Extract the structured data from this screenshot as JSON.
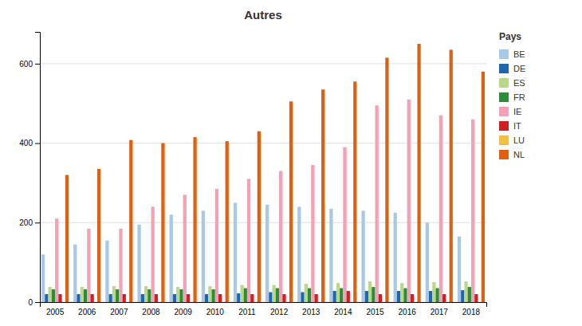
{
  "chart_data": {
    "type": "bar",
    "title": "Autres",
    "legend_title": "Pays",
    "categories": [
      "2005",
      "2006",
      "2007",
      "2008",
      "2009",
      "2010",
      "2011",
      "2012",
      "2013",
      "2014",
      "2015",
      "2016",
      "2017",
      "2018"
    ],
    "series": [
      {
        "name": "BE",
        "color": "#a8c8e8",
        "values": [
          120,
          145,
          155,
          195,
          220,
          230,
          250,
          245,
          240,
          235,
          230,
          225,
          200,
          165
        ]
      },
      {
        "name": "DE",
        "color": "#2166ac",
        "values": [
          20,
          20,
          20,
          20,
          20,
          20,
          22,
          25,
          25,
          28,
          28,
          28,
          28,
          30
        ]
      },
      {
        "name": "ES",
        "color": "#b8d98a",
        "values": [
          38,
          38,
          40,
          40,
          38,
          40,
          43,
          43,
          46,
          48,
          52,
          48,
          50,
          52
        ]
      },
      {
        "name": "FR",
        "color": "#2e8b3a",
        "values": [
          32,
          32,
          32,
          32,
          32,
          32,
          35,
          35,
          35,
          35,
          38,
          35,
          35,
          38
        ]
      },
      {
        "name": "IE",
        "color": "#f4a0b5",
        "values": [
          210,
          185,
          185,
          240,
          270,
          285,
          310,
          330,
          345,
          390,
          495,
          510,
          470,
          460
        ]
      },
      {
        "name": "IT",
        "color": "#cc2222",
        "values": [
          20,
          20,
          20,
          20,
          20,
          20,
          20,
          20,
          20,
          28,
          20,
          20,
          20,
          20
        ]
      },
      {
        "name": "LU",
        "color": "#f0c040",
        "values": [
          0,
          0,
          0,
          0,
          0,
          0,
          0,
          0,
          0,
          0,
          0,
          0,
          0,
          0
        ]
      },
      {
        "name": "NL",
        "color": "#e06010",
        "values": [
          320,
          335,
          408,
          400,
          415,
          405,
          430,
          505,
          535,
          555,
          615,
          650,
          635,
          580
        ]
      }
    ],
    "ylim": [
      0,
      680
    ],
    "yticks": [
      0,
      200,
      400,
      600
    ],
    "grid": true,
    "legend": "right"
  }
}
